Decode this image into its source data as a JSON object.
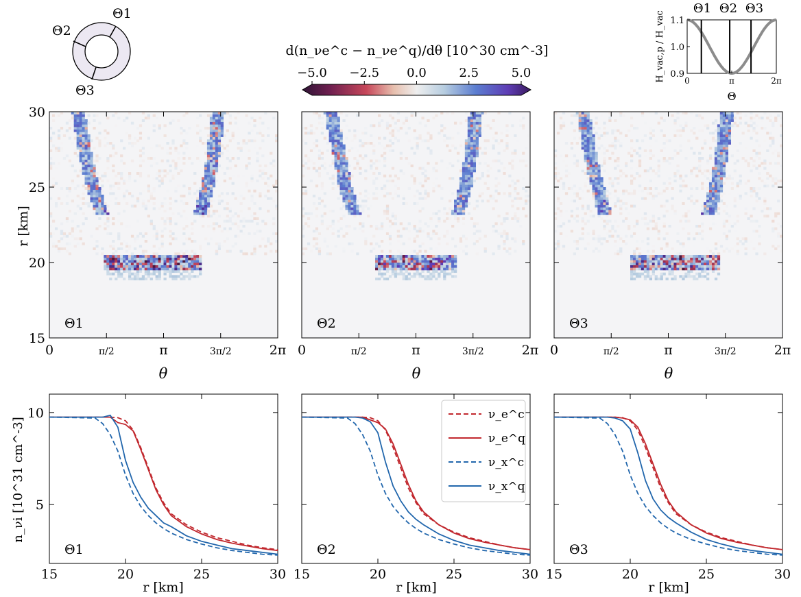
{
  "figure": {
    "colorbar": {
      "label": "d(n_νe^c − n_νe^q)/dθ  [10^30 cm^-3]",
      "ticks": [
        "−5.0",
        "−2.5",
        "0.0",
        "2.5",
        "5.0"
      ],
      "range": [
        -5.0,
        5.0
      ],
      "colormap": "twilight_shifted (purple–red–white–blue–purple)"
    },
    "ring_diagram": {
      "labels": [
        "Θ1",
        "Θ2",
        "Θ3"
      ]
    },
    "inset": {
      "ylabel": "H_vac,p / H_vac",
      "xlabel": "Θ",
      "yticks": [
        "0.9",
        "1.0",
        "1.1"
      ],
      "xticks": [
        "0",
        "π",
        "2π"
      ],
      "markers": [
        "Θ1",
        "Θ2",
        "Θ3"
      ]
    },
    "heatmaps": {
      "ylabel": "r [km]",
      "xlabel": "θ",
      "yticks": [
        "15",
        "20",
        "25",
        "30"
      ],
      "xticks": [
        "0",
        "π/2",
        "π",
        "3π/2",
        "2π"
      ],
      "panel_labels": [
        "Θ1",
        "Θ2",
        "Θ3"
      ]
    },
    "lines": {
      "ylabel": "n_νi [10^31 cm^-3]",
      "xlabel": "r [km]",
      "yticks": [
        "5",
        "10"
      ],
      "xticks": [
        "15",
        "20",
        "25",
        "30"
      ],
      "panel_labels": [
        "Θ1",
        "Θ2",
        "Θ3"
      ],
      "legend": [
        "ν_e^c",
        "ν_e^q",
        "ν_x^c",
        "ν_x^q"
      ],
      "colors": {
        "nue": "#c1272d",
        "nux": "#2166ac"
      }
    }
  },
  "chart_data": [
    {
      "type": "line",
      "title": "",
      "xlabel": "Θ",
      "ylabel": "H_vac,p/H_vac",
      "xlim": [
        0,
        6.283
      ],
      "ylim": [
        0.9,
        1.1
      ],
      "series": [
        {
          "x": [
            0,
            1.571,
            3.142,
            4.712,
            6.283
          ],
          "values": [
            1.1,
            1.0,
            0.9,
            1.0,
            1.1
          ]
        }
      ],
      "vertical_lines": [
        1.0,
        3.0,
        4.5
      ]
    },
    {
      "type": "heatmap",
      "panel": "Θ1",
      "xlabel": "θ",
      "ylabel": "r [km]",
      "xlim": [
        0,
        6.283
      ],
      "ylim": [
        15,
        30
      ],
      "zlim": [
        -5,
        5
      ],
      "features": {
        "arc_left": [
          [
            0.8,
            30
          ],
          [
            1.0,
            27
          ],
          [
            1.2,
            25
          ],
          [
            1.45,
            23.2
          ]
        ],
        "arc_right": [
          [
            4.65,
            30
          ],
          [
            4.5,
            27
          ],
          [
            4.35,
            25
          ],
          [
            4.15,
            23.2
          ]
        ],
        "band_r": 20.0,
        "band_theta": [
          1.5,
          4.2
        ],
        "typical_peak": 4.5
      }
    },
    {
      "type": "heatmap",
      "panel": "Θ2",
      "xlabel": "θ",
      "ylabel": "r [km]",
      "xlim": [
        0,
        6.283
      ],
      "ylim": [
        15,
        30
      ],
      "zlim": [
        -5,
        5
      ],
      "features": {
        "arc_left": [
          [
            0.8,
            30
          ],
          [
            1.05,
            27
          ],
          [
            1.2,
            25
          ],
          [
            1.45,
            23.2
          ]
        ],
        "arc_right": [
          [
            4.8,
            30
          ],
          [
            4.65,
            27
          ],
          [
            4.5,
            25
          ],
          [
            4.3,
            23.2
          ]
        ],
        "band_r": 20.0,
        "band_theta": [
          2.0,
          4.3
        ],
        "typical_peak": 4.0
      }
    },
    {
      "type": "heatmap",
      "panel": "Θ3",
      "xlabel": "θ",
      "ylabel": "r [km]",
      "xlim": [
        0,
        6.283
      ],
      "ylim": [
        15,
        30
      ],
      "zlim": [
        -5,
        5
      ],
      "features": {
        "arc_left": [
          [
            0.8,
            30
          ],
          [
            1.0,
            27
          ],
          [
            1.2,
            25
          ],
          [
            1.4,
            23.2
          ]
        ],
        "arc_right": [
          [
            4.75,
            30
          ],
          [
            4.6,
            27
          ],
          [
            4.45,
            25
          ],
          [
            4.25,
            23.2
          ]
        ],
        "band_r": 20.0,
        "band_theta": [
          2.1,
          4.6
        ],
        "typical_peak": 4.5
      }
    },
    {
      "type": "line",
      "panel": "Θ1",
      "xlabel": "r [km]",
      "ylabel": "n_νi [10^31 cm^-3]",
      "xlim": [
        15,
        30
      ],
      "ylim": [
        1.8,
        11.0
      ],
      "x": [
        15,
        18,
        18.5,
        19,
        19.5,
        20,
        20.5,
        21,
        21.5,
        22,
        22.5,
        23,
        24,
        25,
        26,
        27,
        28,
        29,
        30
      ],
      "series": [
        {
          "name": "ν_e^c",
          "style": "dashed",
          "values": [
            9.75,
            9.75,
            9.75,
            9.75,
            9.72,
            9.55,
            9.05,
            8.1,
            7.0,
            5.9,
            5.1,
            4.5,
            3.9,
            3.5,
            3.2,
            3.0,
            2.8,
            2.65,
            2.55
          ]
        },
        {
          "name": "ν_e^q",
          "style": "solid",
          "values": [
            9.75,
            9.75,
            9.75,
            9.75,
            9.45,
            9.35,
            9.0,
            8.0,
            6.9,
            5.8,
            5.0,
            4.4,
            3.8,
            3.4,
            3.1,
            2.9,
            2.75,
            2.6,
            2.5
          ]
        },
        {
          "name": "ν_x^c",
          "style": "dashed",
          "values": [
            9.75,
            9.7,
            9.4,
            8.8,
            7.9,
            6.6,
            5.6,
            4.9,
            4.4,
            4.0,
            3.7,
            3.45,
            3.1,
            2.85,
            2.65,
            2.5,
            2.4,
            2.3,
            2.25
          ]
        },
        {
          "name": "ν_x^q",
          "style": "solid",
          "values": [
            9.75,
            9.75,
            9.75,
            9.85,
            9.2,
            7.4,
            6.2,
            5.4,
            4.8,
            4.4,
            4.0,
            3.8,
            3.3,
            3.0,
            2.8,
            2.6,
            2.5,
            2.4,
            2.3
          ]
        }
      ]
    },
    {
      "type": "line",
      "panel": "Θ2",
      "xlabel": "r [km]",
      "ylabel": "n_νi [10^31 cm^-3]",
      "xlim": [
        15,
        30
      ],
      "ylim": [
        1.8,
        11.0
      ],
      "x": [
        15,
        18,
        18.5,
        19,
        19.5,
        20,
        20.5,
        21,
        21.5,
        22,
        22.5,
        23,
        24,
        25,
        26,
        27,
        28,
        29,
        30
      ],
      "series": [
        {
          "name": "ν_e^c",
          "style": "dashed",
          "values": [
            9.75,
            9.75,
            9.75,
            9.75,
            9.72,
            9.55,
            9.05,
            8.1,
            7.0,
            5.9,
            5.1,
            4.5,
            3.9,
            3.5,
            3.2,
            3.0,
            2.8,
            2.65,
            2.55
          ]
        },
        {
          "name": "ν_e^q",
          "style": "solid",
          "values": [
            9.75,
            9.75,
            9.75,
            9.75,
            9.6,
            9.45,
            9.1,
            8.3,
            7.2,
            6.1,
            5.2,
            4.6,
            3.9,
            3.45,
            3.15,
            2.95,
            2.8,
            2.65,
            2.55
          ]
        },
        {
          "name": "ν_x^c",
          "style": "dashed",
          "values": [
            9.75,
            9.7,
            9.4,
            8.8,
            7.9,
            6.6,
            5.6,
            4.9,
            4.4,
            4.0,
            3.7,
            3.45,
            3.1,
            2.85,
            2.65,
            2.5,
            2.4,
            2.3,
            2.25
          ]
        },
        {
          "name": "ν_x^q",
          "style": "solid",
          "values": [
            9.75,
            9.75,
            9.75,
            9.7,
            9.5,
            8.9,
            7.3,
            6.0,
            5.2,
            4.6,
            4.2,
            3.9,
            3.4,
            3.05,
            2.8,
            2.65,
            2.5,
            2.4,
            2.3
          ]
        }
      ]
    },
    {
      "type": "line",
      "panel": "Θ3",
      "xlabel": "r [km]",
      "ylabel": "n_νi [10^31 cm^-3]",
      "xlim": [
        15,
        30
      ],
      "ylim": [
        1.8,
        11.0
      ],
      "x": [
        15,
        18,
        18.5,
        19,
        19.5,
        20,
        20.5,
        21,
        21.5,
        22,
        22.5,
        23,
        24,
        25,
        26,
        27,
        28,
        29,
        30
      ],
      "series": [
        {
          "name": "ν_e^c",
          "style": "dashed",
          "values": [
            9.75,
            9.75,
            9.75,
            9.75,
            9.72,
            9.55,
            9.05,
            8.1,
            7.0,
            5.9,
            5.1,
            4.5,
            3.9,
            3.5,
            3.2,
            3.0,
            2.8,
            2.65,
            2.55
          ]
        },
        {
          "name": "ν_e^q",
          "style": "solid",
          "values": [
            9.75,
            9.75,
            9.75,
            9.75,
            9.7,
            9.6,
            9.2,
            8.3,
            7.2,
            6.1,
            5.2,
            4.6,
            3.9,
            3.45,
            3.15,
            2.95,
            2.8,
            2.65,
            2.55
          ]
        },
        {
          "name": "ν_x^c",
          "style": "dashed",
          "values": [
            9.75,
            9.7,
            9.4,
            8.8,
            7.9,
            6.6,
            5.6,
            4.9,
            4.4,
            4.0,
            3.7,
            3.45,
            3.1,
            2.85,
            2.65,
            2.5,
            2.4,
            2.3,
            2.25
          ]
        },
        {
          "name": "ν_x^q",
          "style": "solid",
          "values": [
            9.75,
            9.75,
            9.75,
            9.7,
            9.55,
            9.1,
            7.8,
            6.3,
            5.3,
            4.7,
            4.3,
            4.0,
            3.5,
            3.1,
            2.85,
            2.65,
            2.5,
            2.4,
            2.3
          ]
        }
      ]
    }
  ]
}
